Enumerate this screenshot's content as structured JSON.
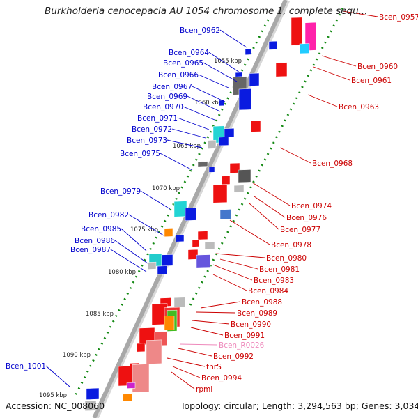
{
  "title": "Burkholderia cenocepacia AU 1054 chromosome 1, complete sequ...",
  "footer": {
    "accession": "Accession: NC_008060",
    "summary": "Topology: circular; Length: 3,294,563 bp; Genes: 3,034"
  },
  "colors": {
    "left_label": "#0000cc",
    "right_label": "#cc0000",
    "rna_label": "#ee88bb",
    "backbone": "#a8a8a8",
    "dots": "#118811"
  },
  "scale_labels": [
    "1055 kbp",
    "1060 kbp",
    "1065 kbp",
    "1070 kbp",
    "1075 kbp",
    "1080 kbp",
    "1085 kbp",
    "1090 kbp",
    "1095 kbp"
  ],
  "left_labels": [
    "Bcen_0962",
    "Bcen_0964",
    "Bcen_0965",
    "Bcen_0966",
    "Bcen_0967",
    "Bcen_0969",
    "Bcen_0970",
    "Bcen_0971",
    "Bcen_0972",
    "Bcen_0973",
    "Bcen_0975",
    "Bcen_0979",
    "Bcen_0982",
    "Bcen_0985",
    "Bcen_0986",
    "Bcen_0987",
    "Bcen_1001"
  ],
  "right_labels": [
    "Bcen_0957",
    "Bcen_0960",
    "Bcen_0961",
    "Bcen_0963",
    "Bcen_0968",
    "Bcen_0974",
    "Bcen_0976",
    "Bcen_0977",
    "Bcen_0978",
    "Bcen_0980",
    "Bcen_0981",
    "Bcen_0983",
    "Bcen_0984",
    "Bcen_0988",
    "Bcen_0989",
    "Bcen_0990",
    "Bcen_0991",
    "Bcen_R0026",
    "Bcen_0992",
    "thrS",
    "Bcen_0994",
    "rpmI"
  ]
}
